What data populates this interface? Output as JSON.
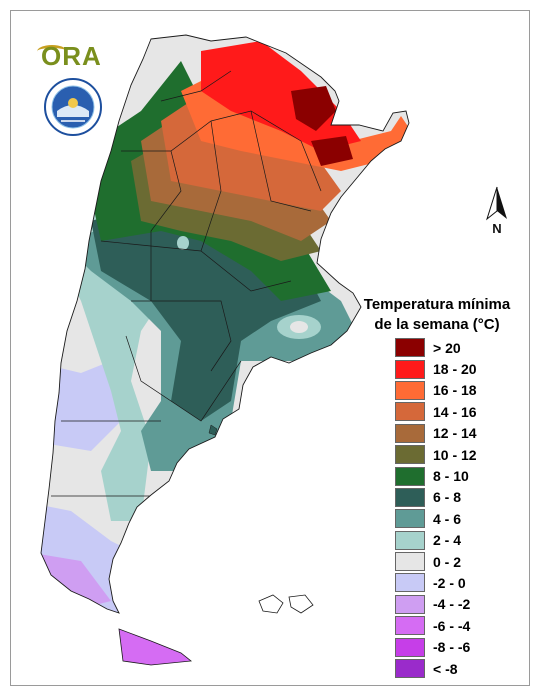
{
  "logo": {
    "text": "ORA",
    "seal": "smn-argentina-seal-icon"
  },
  "north_arrow": {
    "label": "N"
  },
  "legend": {
    "title_line1": "Temperatura mínima",
    "title_line2": "de la semana (°C)",
    "classes": [
      {
        "label": "> 20",
        "color": "#8b0000"
      },
      {
        "label": "18 - 20",
        "color": "#ff1a1a"
      },
      {
        "label": "16 - 18",
        "color": "#ff6b35"
      },
      {
        "label": "14 - 16",
        "color": "#d5683a"
      },
      {
        "label": "12 - 14",
        "color": "#a86a3a"
      },
      {
        "label": "10 - 12",
        "color": "#6b6b33"
      },
      {
        "label": "8 - 10",
        "color": "#1f6e2e"
      },
      {
        "label": "6 - 8",
        "color": "#2e5e58"
      },
      {
        "label": "4 - 6",
        "color": "#5f9b96"
      },
      {
        "label": "2 - 4",
        "color": "#a6d2cc"
      },
      {
        "label": "0 - 2",
        "color": "#e6e6e6"
      },
      {
        "label": "-2 - 0",
        "color": "#c8caf6"
      },
      {
        "label": "-4 - -2",
        "color": "#cf9ef2"
      },
      {
        "label": "-6 - -4",
        "color": "#d56cf3"
      },
      {
        "label": "-8 - -6",
        "color": "#c63ee8"
      },
      {
        "label": "< -8",
        "color": "#9a2bcb"
      }
    ]
  }
}
